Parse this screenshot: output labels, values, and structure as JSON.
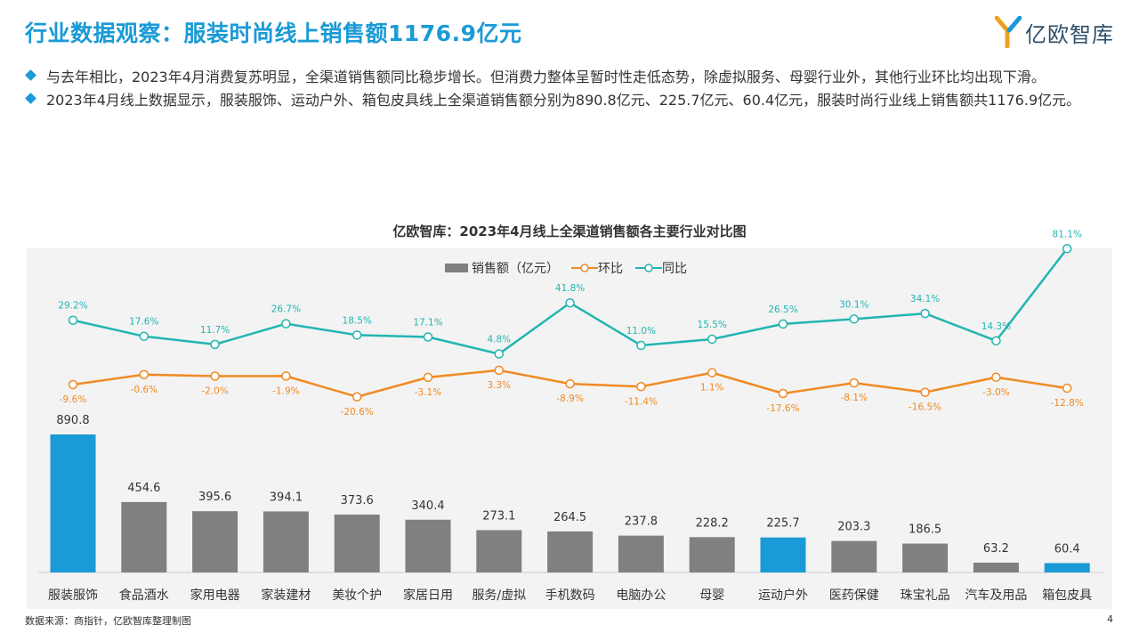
{
  "header": {
    "title": "行业数据观察：服装时尚线上销售额1176.9亿元",
    "logo_text": "亿欧智库"
  },
  "bullets": [
    "与去年相比，2023年4月消费复苏明显，全渠道销售额同比稳步增长。但消费力整体呈暂时性走低态势，除虚拟服务、母婴行业外，其他行业环比均出现下滑。",
    "2023年4月线上数据显示，服装服饰、运动户外、箱包皮具线上全渠道销售额分别为890.8亿元、225.7亿元、60.4亿元，服装时尚行业线上销售额共1176.9亿元。"
  ],
  "footer": {
    "source": "数据来源：商指针，亿欧智库整理制图",
    "page": "4"
  },
  "colors": {
    "accent": "#1a9ad6",
    "bar_gray": "#808080",
    "mom_line": "#f08a24",
    "yoy_line": "#22b5b1"
  },
  "chart_data": {
    "type": "bar",
    "title": "亿欧智库：2023年4月线上全渠道销售额各主要行业对比图",
    "legend": {
      "position": "top"
    },
    "categories": [
      "服装服饰",
      "食品酒水",
      "家用电器",
      "家装建材",
      "美妆个护",
      "家居日用",
      "服务/虚拟",
      "手机数码",
      "电脑办公",
      "母婴",
      "运动户外",
      "医药保健",
      "珠宝礼品",
      "汽车及用品",
      "箱包皮具"
    ],
    "series": [
      {
        "name": "销售额（亿元）",
        "kind": "bar",
        "values": [
          890.8,
          454.6,
          395.6,
          394.1,
          373.6,
          340.4,
          273.1,
          264.5,
          237.8,
          228.2,
          225.7,
          203.3,
          186.5,
          63.2,
          60.4
        ],
        "labels": [
          "890.8",
          "454.6",
          "395.6",
          "394.1",
          "373.6",
          "340.4",
          "273.1",
          "264.5",
          "237.8",
          "228.2",
          "225.7",
          "203.3",
          "186.5",
          "63.2",
          "60.4"
        ],
        "highlight": [
          0,
          10,
          14
        ]
      },
      {
        "name": "环比",
        "kind": "line",
        "values": [
          -9.6,
          -0.6,
          -2.0,
          -1.9,
          -20.6,
          -3.1,
          3.3,
          -8.9,
          -11.4,
          1.1,
          -17.6,
          -8.1,
          -16.5,
          -3.0,
          -12.8
        ],
        "labels": [
          "-9.6%",
          "-0.6%",
          "-2.0%",
          "-1.9%",
          "-20.6%",
          "-3.1%",
          "3.3%",
          "-8.9%",
          "-11.4%",
          "1.1%",
          "-17.6%",
          "-8.1%",
          "-16.5%",
          "-3.0%",
          "-12.8%"
        ]
      },
      {
        "name": "同比",
        "kind": "line",
        "values": [
          29.2,
          17.6,
          11.7,
          26.7,
          18.5,
          17.1,
          4.8,
          41.8,
          11.0,
          15.5,
          26.5,
          30.1,
          34.1,
          14.3,
          81.1
        ],
        "labels": [
          "29.2%",
          "17.6%",
          "11.7%",
          "26.7%",
          "18.5%",
          "17.1%",
          "4.8%",
          "41.8%",
          "11.0%",
          "15.5%",
          "26.5%",
          "30.1%",
          "34.1%",
          "14.3%",
          "81.1%"
        ]
      }
    ]
  }
}
